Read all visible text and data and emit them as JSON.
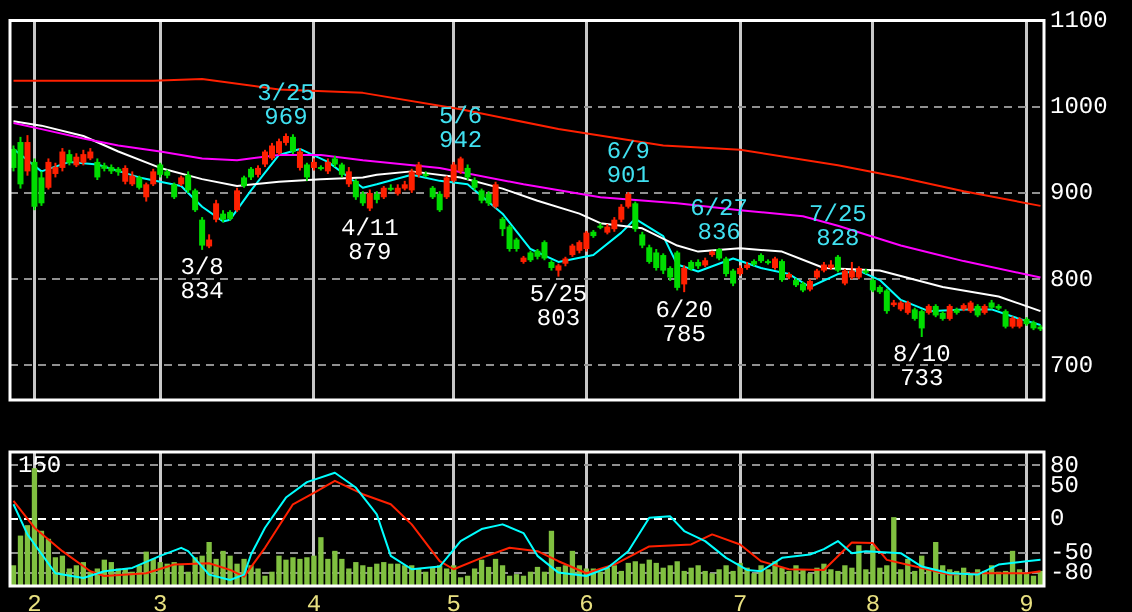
{
  "chart_data": [
    {
      "type": "candlestick",
      "categories": [
        null,
        null,
        null,
        "2",
        null,
        null,
        null,
        null,
        null,
        null,
        null,
        null,
        null,
        null,
        null,
        null,
        null,
        null,
        null,
        null,
        null,
        "3",
        null,
        null,
        null,
        null,
        null,
        null,
        null,
        null,
        null,
        null,
        null,
        null,
        null,
        null,
        null,
        null,
        null,
        null,
        null,
        null,
        null,
        "4",
        null,
        null,
        null,
        null,
        null,
        null,
        null,
        null,
        null,
        null,
        null,
        null,
        null,
        null,
        null,
        null,
        null,
        null,
        null,
        "5",
        null,
        null,
        null,
        null,
        null,
        null,
        null,
        null,
        null,
        null,
        null,
        null,
        null,
        null,
        null,
        null,
        null,
        null,
        "6",
        null,
        null,
        null,
        null,
        null,
        null,
        null,
        null,
        null,
        null,
        null,
        null,
        null,
        null,
        null,
        null,
        null,
        null,
        null,
        null,
        null,
        "7",
        null,
        null,
        null,
        null,
        null,
        null,
        null,
        null,
        null,
        null,
        null,
        null,
        null,
        null,
        null,
        null,
        null,
        null,
        "8",
        null,
        null,
        null,
        null,
        null,
        null,
        null,
        null,
        null,
        null,
        null,
        null,
        null,
        null,
        null,
        null,
        null,
        null,
        null,
        null,
        null,
        "9",
        null,
        null
      ],
      "ohlc": [
        [
          951,
          955,
          925,
          929
        ],
        [
          959,
          965,
          905,
          910
        ],
        [
          925,
          967,
          920,
          959
        ],
        [
          936,
          940,
          880,
          884
        ],
        [
          918,
          925,
          885,
          888
        ],
        [
          906,
          940,
          904,
          936
        ],
        [
          922,
          935,
          918,
          930
        ],
        [
          929,
          952,
          925,
          948
        ],
        [
          945,
          950,
          932,
          935
        ],
        [
          932,
          946,
          930,
          942
        ],
        [
          935,
          950,
          932,
          945
        ],
        [
          940,
          952,
          938,
          948
        ],
        [
          936,
          940,
          915,
          918
        ],
        [
          932,
          935,
          925,
          928
        ],
        [
          930,
          933,
          922,
          925
        ],
        [
          928,
          930,
          920,
          924
        ],
        [
          913,
          932,
          910,
          929
        ],
        [
          910,
          925,
          908,
          920
        ],
        [
          918,
          920,
          904,
          906
        ],
        [
          895,
          912,
          890,
          910
        ],
        [
          910,
          928,
          908,
          925
        ],
        [
          933,
          935,
          918,
          921
        ],
        [
          925,
          927,
          917,
          920
        ],
        [
          910,
          912,
          893,
          895
        ],
        [
          910,
          920,
          908,
          918
        ],
        [
          921,
          925,
          900,
          903
        ],
        [
          903,
          905,
          878,
          880
        ],
        [
          869,
          872,
          834,
          839
        ],
        [
          838,
          852,
          836,
          846
        ],
        [
          869,
          892,
          866,
          888
        ],
        [
          876,
          880,
          866,
          869
        ],
        [
          878,
          880,
          868,
          870
        ],
        [
          880,
          906,
          878,
          903
        ],
        [
          918,
          920,
          906,
          908
        ],
        [
          928,
          930,
          915,
          918
        ],
        [
          921,
          932,
          918,
          929
        ],
        [
          933,
          950,
          930,
          948
        ],
        [
          940,
          958,
          938,
          955
        ],
        [
          946,
          963,
          944,
          960
        ],
        [
          958,
          969,
          955,
          966
        ],
        [
          965,
          968,
          945,
          948
        ],
        [
          929,
          952,
          926,
          948
        ],
        [
          933,
          935,
          914,
          918
        ],
        [
          929,
          940,
          926,
          936
        ],
        [
          930,
          932,
          926,
          928
        ],
        [
          925,
          940,
          922,
          936
        ],
        [
          940,
          943,
          930,
          933
        ],
        [
          933,
          935,
          918,
          921
        ],
        [
          910,
          930,
          907,
          925
        ],
        [
          914,
          916,
          892,
          895
        ],
        [
          899,
          902,
          885,
          888
        ],
        [
          882,
          904,
          879,
          900
        ],
        [
          899,
          902,
          888,
          892
        ],
        [
          895,
          908,
          893,
          906
        ],
        [
          906,
          910,
          902,
          905
        ],
        [
          899,
          910,
          897,
          906
        ],
        [
          905,
          914,
          903,
          910
        ],
        [
          903,
          928,
          900,
          925
        ],
        [
          921,
          936,
          918,
          933
        ],
        [
          922,
          925,
          918,
          920
        ],
        [
          906,
          908,
          893,
          895
        ],
        [
          899,
          902,
          878,
          880
        ],
        [
          895,
          920,
          893,
          918
        ],
        [
          914,
          936,
          912,
          933
        ],
        [
          925,
          942,
          922,
          940
        ],
        [
          929,
          933,
          915,
          918
        ],
        [
          915,
          918,
          903,
          906
        ],
        [
          903,
          905,
          888,
          891
        ],
        [
          899,
          902,
          885,
          888
        ],
        [
          884,
          913,
          882,
          910
        ],
        [
          870,
          872,
          850,
          858
        ],
        [
          861,
          863,
          832,
          835
        ],
        [
          846,
          848,
          832,
          835
        ],
        [
          820,
          827,
          818,
          825
        ],
        [
          831,
          833,
          820,
          822
        ],
        [
          833,
          835,
          823,
          826
        ],
        [
          843,
          845,
          822,
          824
        ],
        [
          820,
          822,
          810,
          813
        ],
        [
          810,
          818,
          803,
          816
        ],
        [
          818,
          826,
          815,
          824
        ],
        [
          828,
          841,
          826,
          839
        ],
        [
          833,
          845,
          830,
          843
        ],
        [
          835,
          856,
          832,
          854
        ],
        [
          855,
          857,
          848,
          850
        ],
        [
          862,
          865,
          858,
          861
        ],
        [
          854,
          864,
          852,
          861
        ],
        [
          858,
          872,
          855,
          869
        ],
        [
          869,
          887,
          866,
          884
        ],
        [
          884,
          901,
          882,
          899
        ],
        [
          888,
          890,
          855,
          858
        ],
        [
          852,
          855,
          836,
          839
        ],
        [
          837,
          840,
          818,
          820
        ],
        [
          831,
          835,
          810,
          813
        ],
        [
          828,
          830,
          806,
          810
        ],
        [
          813,
          815,
          798,
          802
        ],
        [
          831,
          833,
          787,
          790
        ],
        [
          794,
          816,
          785,
          813
        ],
        [
          820,
          822,
          810,
          812
        ],
        [
          820,
          823,
          812,
          815
        ],
        [
          816,
          825,
          814,
          822
        ],
        [
          828,
          833,
          826,
          832
        ],
        [
          835,
          836,
          822,
          824
        ],
        [
          824,
          826,
          803,
          806
        ],
        [
          810,
          812,
          792,
          795
        ],
        [
          806,
          816,
          804,
          813
        ],
        [
          813,
          820,
          811,
          817
        ],
        [
          821,
          823,
          815,
          817
        ],
        [
          828,
          830,
          819,
          821
        ],
        [
          821,
          823,
          817,
          819
        ],
        [
          813,
          826,
          811,
          824
        ],
        [
          821,
          823,
          797,
          799
        ],
        [
          802,
          808,
          800,
          806
        ],
        [
          799,
          801,
          791,
          793
        ],
        [
          795,
          797,
          785,
          787
        ],
        [
          788,
          800,
          786,
          798
        ],
        [
          802,
          812,
          800,
          810
        ],
        [
          810,
          820,
          808,
          817
        ],
        [
          813,
          822,
          811,
          817
        ],
        [
          826,
          828,
          808,
          810
        ],
        [
          795,
          812,
          793,
          810
        ],
        [
          802,
          820,
          800,
          810
        ],
        [
          802,
          815,
          800,
          813
        ],
        [
          810,
          812,
          806,
          809
        ],
        [
          799,
          801,
          785,
          787
        ],
        [
          791,
          793,
          783,
          785
        ],
        [
          787,
          789,
          760,
          763
        ],
        [
          770,
          776,
          768,
          773
        ],
        [
          765,
          775,
          763,
          773
        ],
        [
          761,
          775,
          759,
          773
        ],
        [
          765,
          767,
          752,
          754
        ],
        [
          763,
          765,
          733,
          743
        ],
        [
          761,
          771,
          759,
          769
        ],
        [
          769,
          771,
          756,
          758
        ],
        [
          761,
          763,
          752,
          754
        ],
        [
          754,
          771,
          752,
          769
        ],
        [
          765,
          767,
          759,
          761
        ],
        [
          765,
          772,
          763,
          770
        ],
        [
          763,
          775,
          761,
          773
        ],
        [
          769,
          771,
          756,
          758
        ],
        [
          761,
          771,
          759,
          769
        ],
        [
          773,
          776,
          765,
          767
        ],
        [
          769,
          771,
          764,
          766
        ],
        [
          763,
          765,
          743,
          745
        ],
        [
          745,
          757,
          743,
          755
        ],
        [
          745,
          756,
          743,
          754
        ],
        [
          754,
          756,
          746,
          748
        ],
        [
          750,
          752,
          741,
          743
        ],
        [
          745,
          747,
          740,
          742
        ]
      ],
      "colors": [
        "#00dd00",
        "#00dd00",
        "#ff2000",
        "#00dd00",
        "#00dd00",
        "#ff2000",
        "#ff2000",
        "#ff2000",
        "#00dd00",
        "#ff2000",
        "#ff2000",
        "#ff2000",
        "#00dd00",
        "#00dd00",
        "#00dd00",
        "#00dd00",
        "#ff2000",
        "#ff2000",
        "#00dd00",
        "#ff2000",
        "#ff2000",
        "#00dd00",
        "#00dd00",
        "#00dd00",
        "#ff2000",
        "#00dd00",
        "#00dd00",
        "#00dd00",
        "#ff2000",
        "#ff2000",
        "#00dd00",
        "#00dd00",
        "#ff2000",
        "#00dd00",
        "#00dd00",
        "#ff2000",
        "#ff2000",
        "#ff2000",
        "#ff2000",
        "#ff2000",
        "#00dd00",
        "#ff2000",
        "#00dd00",
        "#ff2000",
        "#00dd00",
        "#ff2000",
        "#00dd00",
        "#00dd00",
        "#ff2000",
        "#00dd00",
        "#00dd00",
        "#ff2000",
        "#00dd00",
        "#ff2000",
        "#00dd00",
        "#ff2000",
        "#ff2000",
        "#ff2000",
        "#ff2000",
        "#00dd00",
        "#00dd00",
        "#00dd00",
        "#ff2000",
        "#ff2000",
        "#ff2000",
        "#00dd00",
        "#00dd00",
        "#00dd00",
        "#00dd00",
        "#ff2000",
        "#00dd00",
        "#00dd00",
        "#00dd00",
        "#ff2000",
        "#00dd00",
        "#00dd00",
        "#00dd00",
        "#00dd00",
        "#ff2000",
        "#ff2000",
        "#ff2000",
        "#ff2000",
        "#ff2000",
        "#00dd00",
        "#00dd00",
        "#ff2000",
        "#ff2000",
        "#ff2000",
        "#ff2000",
        "#00dd00",
        "#00dd00",
        "#00dd00",
        "#00dd00",
        "#00dd00",
        "#00dd00",
        "#00dd00",
        "#ff2000",
        "#00dd00",
        "#00dd00",
        "#ff2000",
        "#ff2000",
        "#00dd00",
        "#00dd00",
        "#00dd00",
        "#ff2000",
        "#ff2000",
        "#00dd00",
        "#00dd00",
        "#00dd00",
        "#ff2000",
        "#00dd00",
        "#ff2000",
        "#00dd00",
        "#00dd00",
        "#ff2000",
        "#ff2000",
        "#ff2000",
        "#ff2000",
        "#00dd00",
        "#ff2000",
        "#ff2000",
        "#ff2000",
        "#00dd00",
        "#00dd00",
        "#00dd00",
        "#00dd00",
        "#ff2000",
        "#ff2000",
        "#ff2000",
        "#00dd00",
        "#00dd00",
        "#ff2000",
        "#00dd00",
        "#00dd00",
        "#ff2000",
        "#00dd00",
        "#ff2000",
        "#ff2000",
        "#00dd00",
        "#ff2000",
        "#00dd00",
        "#00dd00",
        "#00dd00",
        "#ff2000",
        "#ff2000",
        "#00dd00",
        "#00dd00",
        "#00dd00"
      ],
      "series": [
        {
          "type": "line",
          "color": "#ff2000",
          "values": [
            1030,
            null,
            null,
            null,
            null,
            null,
            null,
            null,
            null,
            null,
            null,
            null,
            null,
            null,
            null,
            null,
            null,
            null,
            null,
            null,
            1030,
            null,
            null,
            null,
            null,
            null,
            null,
            1032,
            null,
            null,
            null,
            null,
            null,
            null,
            null,
            null,
            null,
            null,
            1020,
            null,
            null,
            null,
            null,
            null,
            null,
            null,
            null,
            null,
            null,
            null,
            1016,
            null,
            null,
            null,
            null,
            null,
            null,
            null,
            null,
            null,
            null,
            null,
            null,
            null,
            997,
            null,
            null,
            null,
            null,
            null,
            null,
            null,
            null,
            null,
            null,
            null,
            null,
            null,
            974,
            null,
            null,
            null,
            null,
            null,
            null,
            null,
            null,
            null,
            null,
            null,
            null,
            null,
            null,
            955,
            null,
            null,
            null,
            null,
            null,
            null,
            null,
            null,
            null,
            null,
            950,
            null,
            null,
            null,
            null,
            null,
            null,
            null,
            null,
            null,
            null,
            null,
            null,
            null,
            932,
            null,
            null,
            null,
            null,
            null,
            null,
            null,
            null,
            918,
            null,
            null,
            null,
            null,
            null,
            null,
            null,
            null,
            902,
            null,
            null,
            null,
            null,
            null,
            null,
            null,
            null,
            null,
            null,
            885
          ]
        },
        {
          "type": "line",
          "color": "#ff00ff",
          "values": [
            981,
            null,
            null,
            null,
            974,
            null,
            null,
            null,
            null,
            null,
            963,
            null,
            null,
            null,
            null,
            955,
            null,
            null,
            null,
            null,
            null,
            948,
            null,
            null,
            null,
            null,
            null,
            940,
            null,
            null,
            null,
            null,
            938,
            null,
            null,
            null,
            null,
            null,
            944,
            null,
            null,
            null,
            null,
            null,
            944,
            null,
            null,
            null,
            null,
            null,
            938,
            null,
            null,
            null,
            null,
            null,
            null,
            null,
            null,
            null,
            null,
            929,
            null,
            null,
            null,
            null,
            null,
            null,
            null,
            null,
            null,
            null,
            null,
            910,
            null,
            null,
            null,
            null,
            null,
            null,
            null,
            null,
            null,
            null,
            895,
            null,
            null,
            null,
            null,
            null,
            null,
            null,
            null,
            null,
            null,
            888,
            null,
            null,
            null,
            null,
            null,
            null,
            null,
            null,
            880,
            null,
            null,
            null,
            null,
            null,
            null,
            null,
            null,
            873,
            null,
            null,
            null,
            null,
            862,
            null,
            null,
            null,
            null,
            null,
            null,
            null,
            null,
            839,
            null,
            null,
            null,
            null,
            null,
            null,
            null,
            null,
            821,
            null,
            null,
            null,
            null,
            null,
            null,
            null,
            null,
            null,
            null,
            802
          ]
        },
        {
          "type": "line",
          "color": "#ffffff",
          "values": [
            983,
            null,
            null,
            null,
            978,
            null,
            null,
            null,
            null,
            null,
            966,
            null,
            null,
            null,
            null,
            948,
            null,
            null,
            null,
            null,
            null,
            929,
            null,
            null,
            null,
            null,
            null,
            916,
            null,
            null,
            null,
            null,
            908,
            null,
            null,
            null,
            null,
            null,
            913,
            null,
            null,
            null,
            null,
            null,
            916,
            null,
            null,
            null,
            null,
            null,
            918,
            null,
            921,
            null,
            null,
            null,
            null,
            925,
            null,
            null,
            null,
            null,
            null,
            null,
            918,
            null,
            null,
            null,
            null,
            null,
            905,
            null,
            null,
            null,
            null,
            891,
            null,
            null,
            null,
            null,
            null,
            876,
            null,
            null,
            865,
            null,
            null,
            null,
            null,
            null,
            859,
            null,
            null,
            null,
            null,
            839,
            null,
            null,
            832,
            null,
            null,
            null,
            null,
            null,
            836,
            null,
            null,
            null,
            null,
            null,
            832,
            null,
            null,
            null,
            null,
            null,
            813,
            null,
            null,
            null,
            null,
            null,
            null,
            null,
            810,
            null,
            null,
            null,
            null,
            null,
            null,
            null,
            null,
            791,
            null,
            null,
            null,
            null,
            null,
            null,
            null,
            780,
            null,
            null,
            null,
            null,
            null,
            763
          ]
        },
        {
          "type": "line",
          "color": "#00ffff",
          "values": [
            951,
            null,
            null,
            null,
            925,
            null,
            null,
            null,
            936,
            null,
            null,
            null,
            933,
            null,
            null,
            null,
            null,
            null,
            918,
            null,
            null,
            null,
            null,
            null,
            908,
            null,
            null,
            884,
            null,
            null,
            867,
            869,
            null,
            null,
            903,
            null,
            null,
            null,
            944,
            null,
            null,
            951,
            null,
            null,
            null,
            936,
            null,
            null,
            null,
            null,
            906,
            null,
            910,
            null,
            null,
            null,
            null,
            921,
            null,
            null,
            null,
            914,
            null,
            null,
            null,
            910,
            null,
            null,
            null,
            null,
            876,
            null,
            null,
            null,
            835,
            null,
            null,
            null,
            820,
            null,
            null,
            null,
            null,
            828,
            null,
            null,
            null,
            854,
            null,
            870,
            null,
            null,
            null,
            850,
            null,
            817,
            null,
            null,
            809,
            null,
            null,
            null,
            null,
            824,
            null,
            null,
            null,
            813,
            null,
            null,
            null,
            806,
            null,
            null,
            791,
            null,
            null,
            null,
            806,
            null,
            null,
            810,
            null,
            null,
            799,
            null,
            null,
            776,
            null,
            null,
            null,
            763,
            null,
            null,
            null,
            null,
            765,
            null,
            null,
            null,
            765,
            null,
            null,
            null,
            754,
            null,
            null,
            747
          ]
        }
      ],
      "annotations": [
        {
          "text": "3/8 834",
          "y": 834
        },
        {
          "text": "3/25 969",
          "y": 969
        },
        {
          "text": "4/11 879",
          "y": 879
        },
        {
          "text": "5/6 942",
          "y": 942
        },
        {
          "text": "5/25 803",
          "y": 803
        },
        {
          "text": "6/9 901",
          "y": 901
        },
        {
          "text": "6/20 785",
          "y": 785
        },
        {
          "text": "6/27 836",
          "y": 836
        },
        {
          "text": "7/25 828",
          "y": 828
        },
        {
          "text": "8/10 733",
          "y": 733
        }
      ],
      "ylim": [
        660,
        1100
      ],
      "yticks": [
        700,
        800,
        900,
        1000,
        1100
      ],
      "grid": true,
      "tick_labels": "y"
    },
    {
      "type": "bar",
      "categories": [
        null,
        null,
        null,
        "2",
        null,
        null,
        null,
        null,
        null,
        null,
        null,
        null,
        null,
        null,
        null,
        null,
        null,
        null,
        null,
        null,
        null,
        "3",
        null,
        null,
        null,
        null,
        null,
        null,
        null,
        null,
        null,
        null,
        null,
        null,
        null,
        null,
        null,
        null,
        null,
        null,
        null,
        null,
        null,
        "4",
        null,
        null,
        null,
        null,
        null,
        null,
        null,
        null,
        null,
        null,
        null,
        null,
        null,
        null,
        null,
        null,
        null,
        null,
        null,
        "5",
        null,
        null,
        null,
        null,
        null,
        null,
        null,
        null,
        null,
        null,
        null,
        null,
        null,
        null,
        null,
        null,
        null,
        null,
        "6",
        null,
        null,
        null,
        null,
        null,
        null,
        null,
        null,
        null,
        null,
        null,
        null,
        null,
        null,
        null,
        null,
        null,
        null,
        null,
        null,
        null,
        "7",
        null,
        null,
        null,
        null,
        null,
        null,
        null,
        null,
        null,
        null,
        null,
        null,
        null,
        null,
        null,
        null,
        null,
        null,
        "8",
        null,
        null,
        null,
        null,
        null,
        null,
        null,
        null,
        null,
        null,
        null,
        null,
        null,
        null,
        null,
        null,
        null,
        null,
        null,
        null,
        null,
        "9",
        null,
        null
      ],
      "series": [
        {
          "type": "bar",
          "color": "#80c040",
          "axis": "y2",
          "values": [
            25,
            62,
            75,
            146,
            68,
            58,
            35,
            37,
            21,
            25,
            29,
            17,
            21,
            32,
            29,
            21,
            21,
            17,
            25,
            42,
            33,
            29,
            27,
            29,
            25,
            17,
            35,
            37,
            54,
            33,
            43,
            37,
            27,
            33,
            25,
            21,
            12,
            17,
            37,
            32,
            35,
            33,
            35,
            37,
            60,
            33,
            43,
            33,
            21,
            29,
            25,
            23,
            27,
            29,
            27,
            27,
            25,
            25,
            21,
            17,
            23,
            25,
            21,
            25,
            10,
            12,
            21,
            32,
            23,
            33,
            25,
            12,
            14,
            12,
            17,
            23,
            17,
            68,
            23,
            25,
            43,
            25,
            21,
            21,
            17,
            22,
            25,
            18,
            28,
            30,
            27,
            32,
            28,
            22,
            25,
            30,
            18,
            22,
            25,
            18,
            15,
            20,
            25,
            18,
            28,
            22,
            15,
            25,
            20,
            30,
            22,
            18,
            25,
            20,
            15,
            22,
            27,
            20,
            18,
            25,
            22,
            50,
            20,
            50,
            22,
            25,
            85,
            20,
            33,
            18,
            37,
            20,
            54,
            25,
            20,
            18,
            22,
            15,
            20,
            18,
            25,
            17,
            18,
            43,
            20,
            15,
            12,
            18
          ]
        },
        {
          "type": "line",
          "color": "#00ffff",
          "values": [
            22,
            null,
            -23,
            null,
            null,
            null,
            -81,
            null,
            null,
            null,
            -88,
            null,
            null,
            -78,
            null,
            null,
            null,
            -73,
            null,
            null,
            null,
            -55,
            null,
            null,
            -43,
            -48,
            null,
            null,
            -83,
            null,
            null,
            -91,
            null,
            -83,
            -53,
            null,
            -13,
            null,
            null,
            32,
            null,
            null,
            55,
            null,
            null,
            null,
            69,
            null,
            null,
            47,
            null,
            null,
            7,
            null,
            -55,
            null,
            null,
            -75,
            null,
            null,
            null,
            -71,
            null,
            null,
            -33,
            null,
            null,
            -15,
            null,
            null,
            -8,
            null,
            null,
            -21,
            null,
            -55,
            null,
            null,
            -80,
            null,
            null,
            null,
            -85,
            null,
            null,
            -73,
            null,
            null,
            -48,
            null,
            null,
            2,
            null,
            null,
            4,
            null,
            -18,
            null,
            null,
            -33,
            null,
            null,
            -58,
            null,
            null,
            -76,
            null,
            -78,
            null,
            null,
            -58,
            null,
            null,
            null,
            -53,
            null,
            -45,
            null,
            -33,
            null,
            -51,
            null,
            -48,
            null,
            null,
            null,
            null,
            -51,
            null,
            null,
            -71,
            null,
            null,
            null,
            -81,
            null,
            null,
            null,
            -83,
            null,
            null,
            -68,
            null,
            null,
            null,
            -63,
            null,
            -61
          ]
        },
        {
          "type": "line",
          "color": "#ff2000",
          "values": [
            27,
            null,
            null,
            -13,
            null,
            null,
            null,
            -48,
            null,
            null,
            null,
            -78,
            null,
            -85,
            null,
            null,
            null,
            null,
            null,
            -81,
            null,
            null,
            null,
            -68,
            null,
            null,
            null,
            null,
            -66,
            null,
            null,
            -76,
            null,
            -86,
            null,
            null,
            -43,
            null,
            null,
            null,
            22,
            null,
            null,
            39,
            null,
            null,
            57,
            null,
            null,
            null,
            37,
            null,
            null,
            null,
            22,
            null,
            null,
            -8,
            null,
            null,
            null,
            -63,
            null,
            -75,
            null,
            null,
            null,
            -58,
            null,
            null,
            null,
            -43,
            null,
            null,
            null,
            -48,
            null,
            null,
            -63,
            null,
            null,
            null,
            -81,
            null,
            null,
            null,
            -68,
            null,
            null,
            null,
            null,
            -41,
            null,
            null,
            null,
            null,
            null,
            -38,
            null,
            null,
            -23,
            null,
            null,
            null,
            -38,
            null,
            null,
            -63,
            null,
            null,
            null,
            -75,
            null,
            null,
            null,
            null,
            -76,
            null,
            null,
            null,
            -35,
            null,
            null,
            -36,
            null,
            -61,
            null,
            null,
            null,
            null,
            -73,
            null,
            null,
            null,
            -83,
            null,
            null,
            null,
            -81,
            null,
            null,
            null,
            null,
            null,
            null,
            -81,
            null,
            -78
          ]
        }
      ],
      "ylim": [
        -100,
        100
      ],
      "yticks": [
        -80,
        -50,
        0,
        50,
        80
      ],
      "ref_lines": [
        {
          "axis": "y",
          "value": 0,
          "color": "#ffffff",
          "line_style": "dashed"
        }
      ],
      "y2lim": [
        0,
        167
      ],
      "y2ticks": [
        150
      ],
      "grid": true
    }
  ]
}
